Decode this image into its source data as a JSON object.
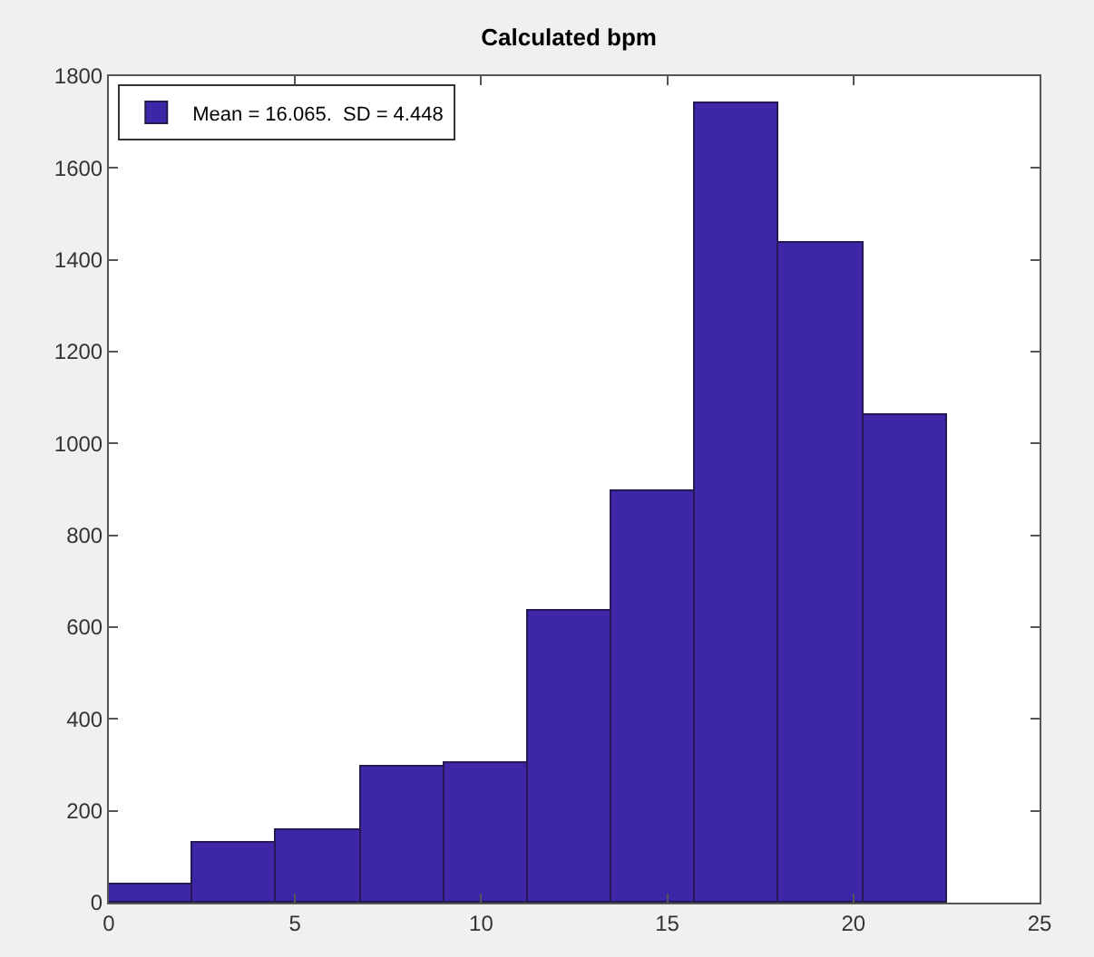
{
  "chart_data": {
    "type": "histogram",
    "title": "Calculated bpm",
    "bins": [
      0,
      2.25,
      4.5,
      6.75,
      9,
      11.25,
      13.5,
      15.75,
      18,
      20.25,
      22.5
    ],
    "series": [
      {
        "name": "Mean = 16.065.  SD = 4.448",
        "color": "#3d26a8",
        "values": [
          40,
          130,
          158,
          298,
          305,
          637,
          895,
          1740,
          1435,
          1060
        ]
      }
    ],
    "xlim": [
      0,
      25
    ],
    "xticks": [
      0,
      5,
      10,
      15,
      20,
      25
    ],
    "ylim": [
      0,
      1800
    ],
    "yticks": [
      0,
      200,
      400,
      600,
      800,
      1000,
      1200,
      1400,
      1600,
      1800
    ],
    "grid": false,
    "legend": "top left"
  }
}
